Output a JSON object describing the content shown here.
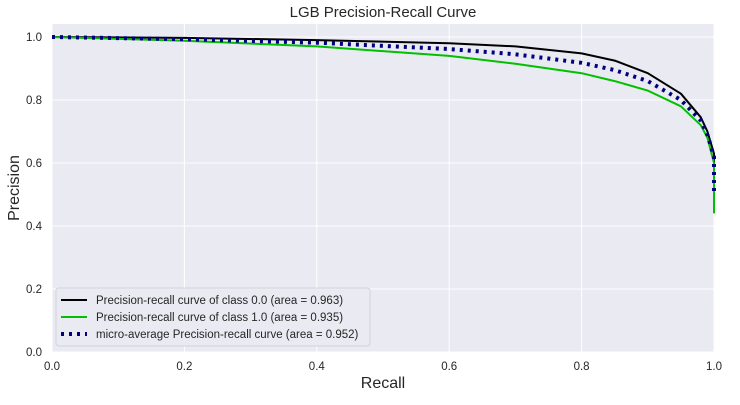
{
  "chart_data": {
    "type": "line",
    "title": "LGB Precision-Recall Curve",
    "xlabel": "Recall",
    "ylabel": "Precision",
    "xlim": [
      0,
      1
    ],
    "ylim": [
      0,
      1.05
    ],
    "xticks": [
      "0.0",
      "0.2",
      "0.4",
      "0.6",
      "0.8",
      "1.0"
    ],
    "yticks": [
      "0.0",
      "0.2",
      "0.4",
      "0.6",
      "0.8",
      "1.0"
    ],
    "grid": true,
    "legend_position": "lower-left",
    "series": [
      {
        "name": "Precision-recall curve of class 0.0 (area = 0.963)",
        "color": "#000000",
        "style": "solid",
        "x": [
          0,
          0.2,
          0.4,
          0.6,
          0.7,
          0.8,
          0.85,
          0.9,
          0.95,
          0.98,
          0.99,
          1.0,
          1.0
        ],
        "y": [
          1.0,
          0.997,
          0.99,
          0.98,
          0.97,
          0.948,
          0.925,
          0.885,
          0.82,
          0.745,
          0.7,
          0.63,
          0.6
        ]
      },
      {
        "name": "Precision-recall curve of class 1.0 (area = 0.935)",
        "color": "#00c000",
        "style": "solid",
        "x": [
          0,
          0.2,
          0.4,
          0.6,
          0.7,
          0.8,
          0.85,
          0.9,
          0.95,
          0.98,
          0.99,
          1.0,
          1.0
        ],
        "y": [
          1.0,
          0.988,
          0.97,
          0.94,
          0.915,
          0.885,
          0.86,
          0.83,
          0.78,
          0.72,
          0.68,
          0.6,
          0.44
        ]
      },
      {
        "name": "micro-average Precision-recall curve (area = 0.952)",
        "color": "#000080",
        "style": "dotted",
        "x": [
          0,
          0.2,
          0.4,
          0.6,
          0.7,
          0.8,
          0.85,
          0.9,
          0.95,
          0.98,
          0.99,
          1.0,
          1.0
        ],
        "y": [
          1.0,
          0.993,
          0.982,
          0.962,
          0.945,
          0.918,
          0.895,
          0.86,
          0.8,
          0.735,
          0.69,
          0.62,
          0.5
        ]
      }
    ]
  }
}
